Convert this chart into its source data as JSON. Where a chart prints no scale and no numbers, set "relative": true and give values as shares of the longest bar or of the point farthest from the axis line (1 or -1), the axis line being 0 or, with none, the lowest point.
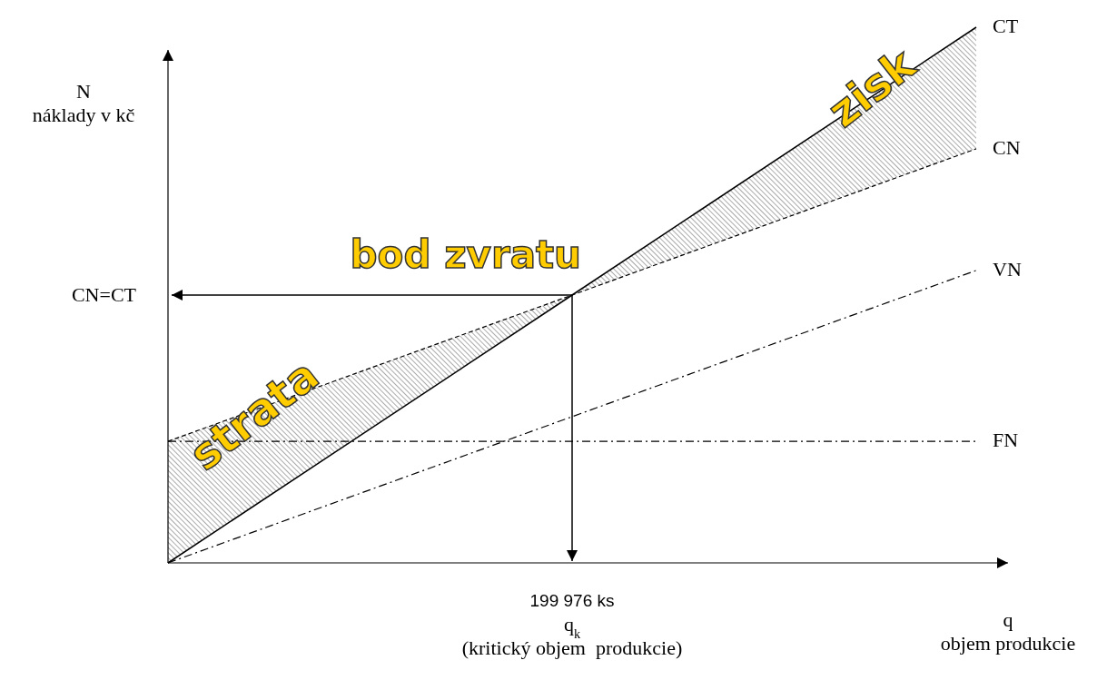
{
  "chart_data": {
    "type": "line",
    "relative": true,
    "xlabel": "q\nobjem produkcie",
    "ylabel": "N\nnáklady v kč",
    "categories": [
      null,
      null,
      null
    ],
    "series": [
      {
        "name": "CT",
        "color": "#000000",
        "line_style": "solid",
        "values": [
          0,
          0.5,
          1
        ]
      },
      {
        "name": "CN",
        "color": "#000000",
        "line_style": "dashed",
        "values": [
          0.227,
          0.5,
          0.773
        ]
      },
      {
        "name": "VN",
        "color": "#000000",
        "line_style": "dashdot",
        "values": [
          0,
          0.273,
          0.546
        ]
      },
      {
        "name": "FN",
        "color": "#000000",
        "line_style": "dashdot",
        "values": [
          0.227,
          0.227,
          0.227
        ]
      }
    ],
    "ref_lines": [
      {
        "axis": "y",
        "value": 0.5,
        "label": "CN=CT"
      }
    ],
    "annotations": [
      "bod zvratu",
      "strata",
      "zisk",
      "199 976 ks",
      "q$_{k}$\n(kritický objem  produkcie)"
    ]
  }
}
